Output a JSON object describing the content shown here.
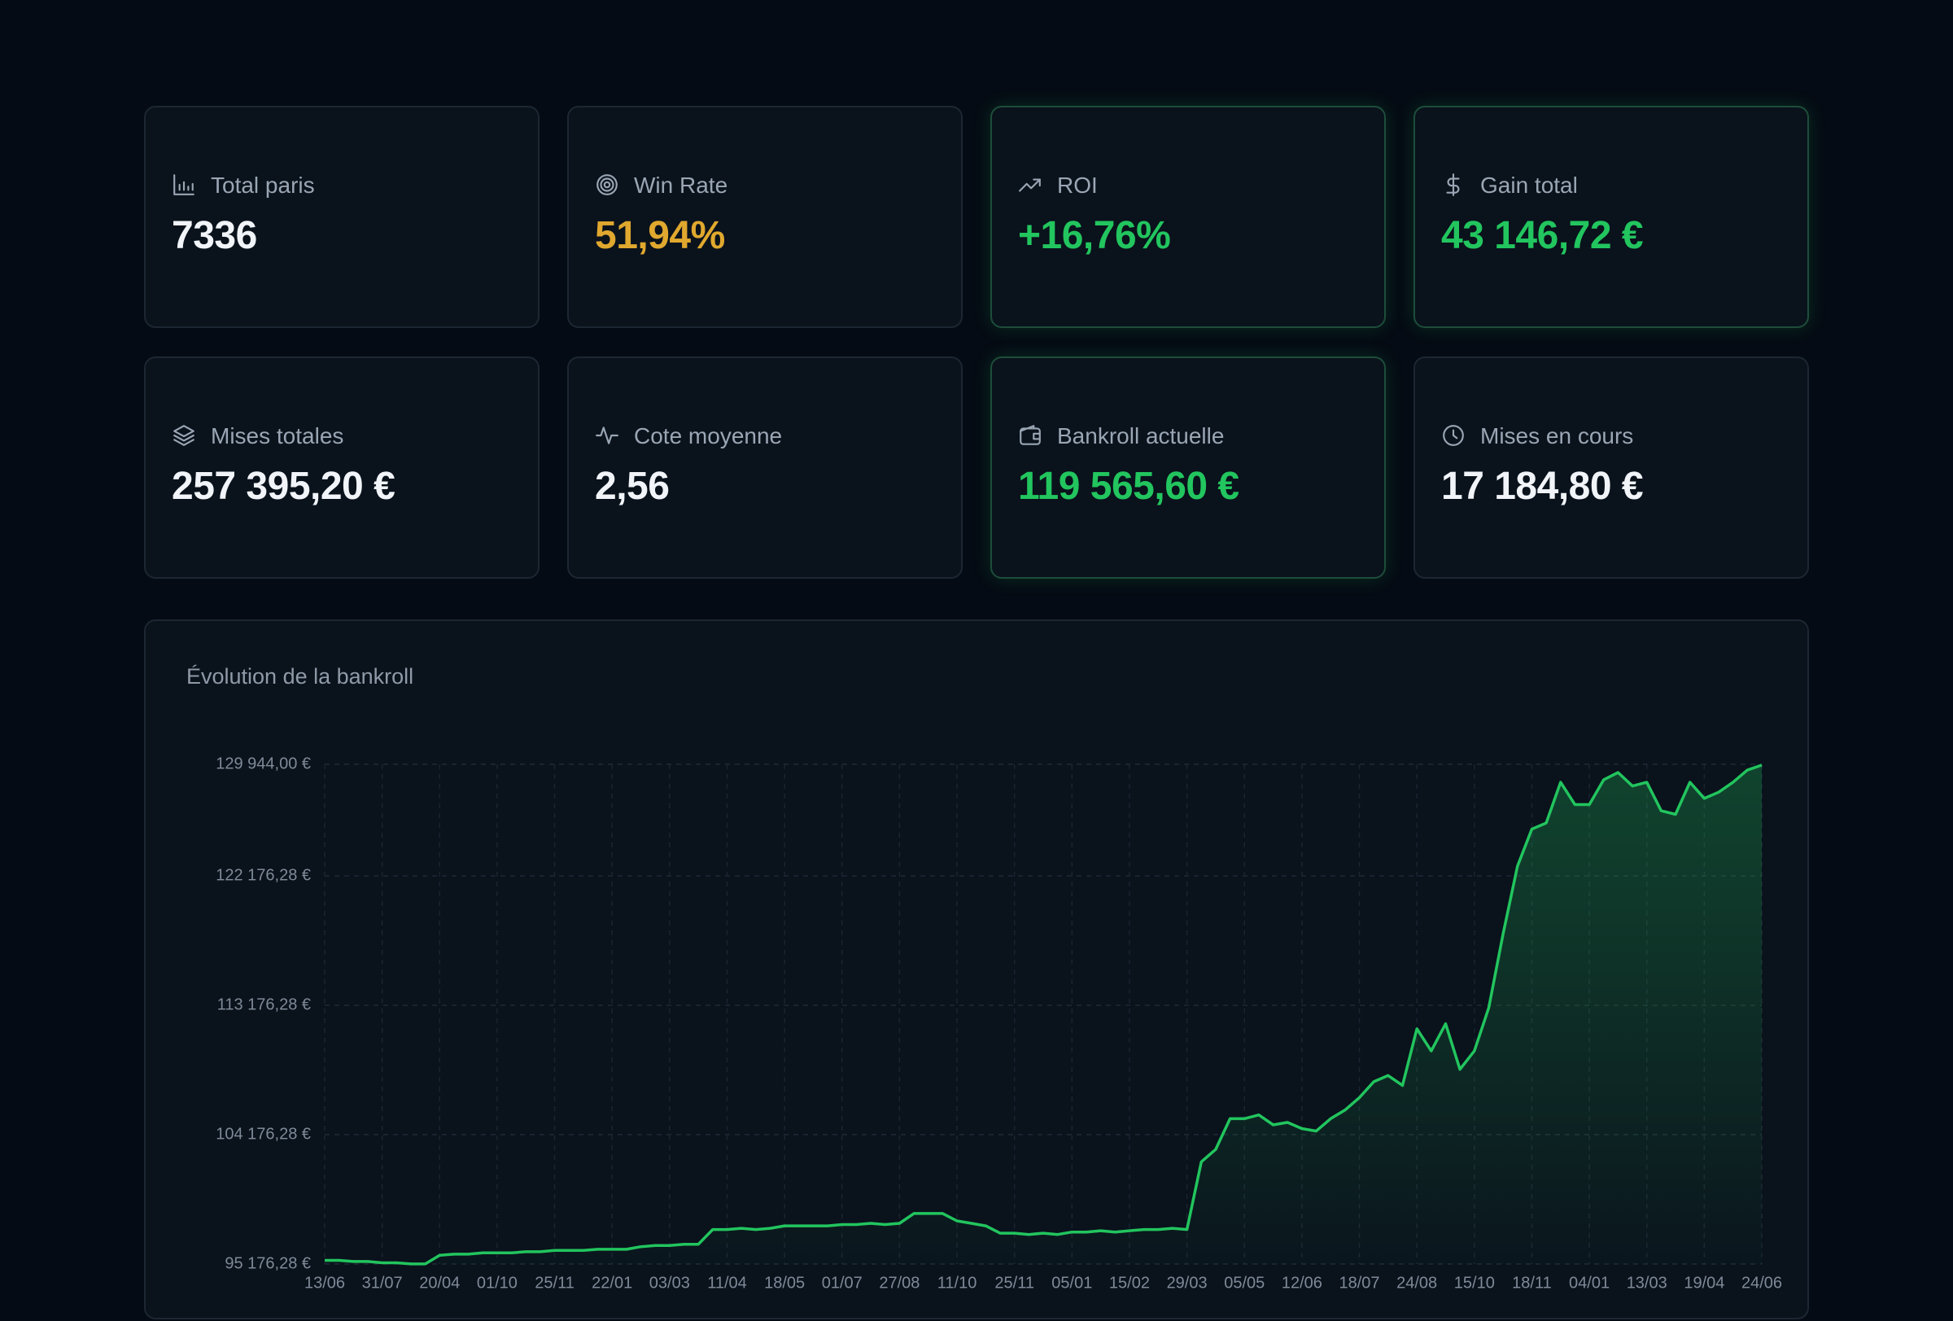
{
  "cards": [
    {
      "label": "Total paris",
      "value": "7336",
      "color": "#f1f5f9",
      "highlight": false
    },
    {
      "label": "Win Rate",
      "value": "51,94%",
      "color": "#e0a82e",
      "highlight": false
    },
    {
      "label": "ROI",
      "value": "+16,76%",
      "color": "#22c55e",
      "highlight": true
    },
    {
      "label": "Gain total",
      "value": "43 146,72 €",
      "color": "#22c55e",
      "highlight": true
    },
    {
      "label": "Mises totales",
      "value": "257 395,20 €",
      "color": "#f1f5f9",
      "highlight": false
    },
    {
      "label": "Cote moyenne",
      "value": "2,56",
      "color": "#f1f5f9",
      "highlight": false
    },
    {
      "label": "Bankroll actuelle",
      "value": "119 565,60 €",
      "color": "#22c55e",
      "highlight": true
    },
    {
      "label": "Mises en cours",
      "value": "17 184,80 €",
      "color": "#f1f5f9",
      "highlight": false
    }
  ],
  "chart_data": {
    "type": "line",
    "title": "Évolution de la bankroll",
    "color": "#22c55e",
    "grid": true,
    "categories": [
      "13/06",
      null,
      null,
      null,
      "31/07",
      null,
      null,
      null,
      "20/04",
      null,
      null,
      null,
      "01/10",
      null,
      null,
      null,
      "25/11",
      null,
      null,
      null,
      "22/01",
      null,
      null,
      null,
      "03/03",
      null,
      null,
      null,
      "11/04",
      null,
      null,
      null,
      "18/05",
      null,
      null,
      null,
      "01/07",
      null,
      null,
      null,
      "27/08",
      null,
      null,
      null,
      "11/10",
      null,
      null,
      null,
      "25/11",
      null,
      null,
      null,
      "05/01",
      null,
      null,
      null,
      "15/02",
      null,
      null,
      null,
      "29/03",
      null,
      null,
      null,
      "05/05",
      null,
      null,
      null,
      "12/06",
      null,
      null,
      null,
      "18/07",
      null,
      null,
      null,
      "24/08",
      null,
      null,
      null,
      "15/10",
      null,
      null,
      null,
      "18/11",
      null,
      null,
      null,
      "04/01",
      null,
      null,
      null,
      "13/03",
      null,
      null,
      null,
      "19/04",
      null,
      null,
      null,
      "24/06"
    ],
    "values": [
      95430,
      95430,
      95350,
      95350,
      95260,
      95260,
      95180,
      95180,
      95780,
      95860,
      95860,
      95950,
      95950,
      95950,
      96030,
      96030,
      96120,
      96120,
      96120,
      96200,
      96200,
      96200,
      96380,
      96460,
      96460,
      96550,
      96550,
      97580,
      97580,
      97660,
      97580,
      97660,
      97830,
      97830,
      97830,
      97830,
      97920,
      97920,
      98010,
      97920,
      98010,
      98690,
      98690,
      98690,
      98180,
      98010,
      97830,
      97320,
      97320,
      97230,
      97320,
      97230,
      97400,
      97400,
      97490,
      97400,
      97490,
      97580,
      97580,
      97660,
      97580,
      102290,
      103150,
      105290,
      105290,
      105550,
      104860,
      105030,
      104600,
      104430,
      105290,
      105890,
      106750,
      107860,
      108290,
      107600,
      111540,
      110000,
      111890,
      108720,
      110000,
      113000,
      118140,
      122860,
      125430,
      125860,
      128690,
      127140,
      127140,
      128860,
      129370,
      128430,
      128690,
      126710,
      126460,
      128690,
      127570,
      128000,
      128690,
      129540,
      129890
    ],
    "ylim": [
      95176.28,
      129944
    ],
    "yticks": [
      {
        "value": 95176.28,
        "label": "95 176,28 €"
      },
      {
        "value": 104176.28,
        "label": "104 176,28 €"
      },
      {
        "value": 113176.28,
        "label": "113 176,28 €"
      },
      {
        "value": 122176.28,
        "label": "122 176,28 €"
      },
      {
        "value": 129944,
        "label": "129 944,00 €"
      }
    ]
  }
}
